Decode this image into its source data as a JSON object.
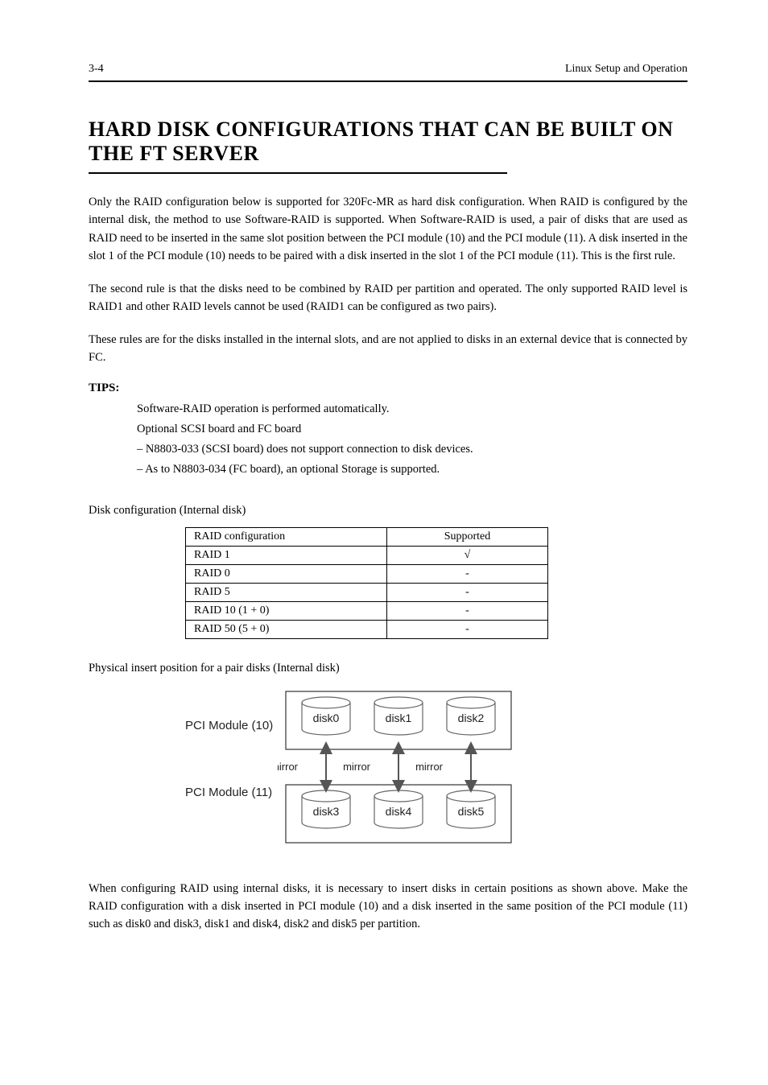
{
  "header": {
    "chapter": "3-4",
    "title": "Linux Setup and Operation"
  },
  "section": {
    "title": "HARD DISK CONFIGURATIONS THAT CAN BE BUILT ON THE FT SERVER"
  },
  "para1": "Only the RAID configuration below is supported for 320Fc-MR as hard disk configuration. When RAID is configured by the internal disk, the method to use Software-RAID is supported. When Software-RAID is used, a pair of disks that are used as RAID need to be inserted in the same slot position between the PCI module (10) and the PCI module (11). A disk inserted in the slot 1 of the PCI module (10) needs to be paired with a disk inserted in the slot 1 of the PCI module (11). This is the first rule.",
  "para2": "The second rule is that the disks need to be combined by RAID per partition and operated. The only supported RAID level is RAID1 and other RAID levels cannot be used (RAID1 can be configured as two pairs).",
  "para3": "These rules are for the disks installed in the internal slots, and are not applied to disks in an external device that is connected by FC.",
  "tips": {
    "label": "TIPS:",
    "items": [
      "Software-RAID operation is performed automatically.",
      "Optional SCSI board and FC board",
      "N8803-033 (SCSI board) does not support connection to disk devices.",
      "As to N8803-034 (FC board), an optional Storage is supported."
    ]
  },
  "disk_text": "Disk configuration (Internal disk)",
  "table": {
    "rows": [
      [
        "RAID configuration",
        "Supported"
      ],
      [
        "RAID 1",
        "√"
      ],
      [
        "RAID 0",
        "-"
      ],
      [
        "RAID 5",
        "-"
      ],
      [
        "RAID 10 (1 + 0)",
        "-"
      ],
      [
        "RAID 50 (5 + 0)",
        "-"
      ]
    ],
    "border_color": "#000000",
    "check_color": "#000000"
  },
  "diagram_text": "Physical insert position for a pair disks (Internal disk)",
  "diagram": {
    "module_labels": [
      "PCI Module (10)",
      "PCI Module (11)"
    ],
    "top_disks": [
      "disk0",
      "disk1",
      "disk2"
    ],
    "bottom_disks": [
      "disk3",
      "disk4",
      "disk5"
    ],
    "arrow_label": "mirror",
    "font_family": "Arial, sans-serif",
    "box_stroke": "#333333",
    "disk_fill": "#ffffff",
    "disk_stroke": "#666666",
    "arrow_stroke": "#555555",
    "text_color": "#222222"
  },
  "para4": "When configuring RAID using internal disks, it is necessary to insert disks in certain positions as shown above. Make the RAID configuration with a disk inserted in PCI module (10) and a disk inserted in the same position of the PCI module (11) such as disk0 and disk3, disk1 and disk4, disk2 and disk5 per partition.",
  "footer": {
    "page": ""
  }
}
